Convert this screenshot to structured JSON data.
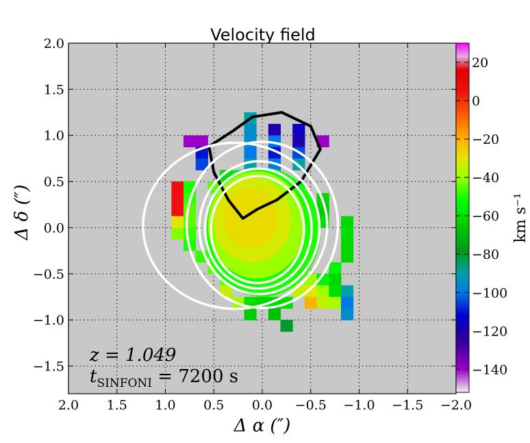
{
  "chart_data": {
    "type": "heatmap",
    "title": "Velocity field",
    "xlabel": "Δ α  (″)",
    "ylabel": "Δ δ  (″)",
    "xlim": [
      2.0,
      -2.0
    ],
    "ylim": [
      -1.8,
      2.0
    ],
    "grid": true,
    "x_ticks": [
      2.0,
      1.5,
      1.0,
      0.5,
      0.0,
      -0.5,
      -1.0,
      -1.5,
      -2.0
    ],
    "x_tick_labels": [
      "2.0",
      "1.5",
      "1.0",
      "0.5",
      "0.0",
      "−0.5",
      "−1.0",
      "−1.5",
      "−2.0"
    ],
    "y_ticks": [
      2.0,
      1.5,
      1.0,
      0.5,
      0.0,
      -0.5,
      -1.0,
      -1.5
    ],
    "y_tick_labels": [
      "2.0",
      "1.5",
      "1.0",
      "0.5",
      "0.0",
      "−0.5",
      "−1.0",
      "−1.5"
    ],
    "colorbar": {
      "label": "km s⁻¹",
      "vmin": -152,
      "vmax": 30,
      "ticks": [
        20,
        0,
        -20,
        -40,
        -60,
        -80,
        -100,
        -120,
        -140
      ],
      "tick_labels": [
        "20",
        "0",
        "−20",
        "−40",
        "−60",
        "−80",
        "−100",
        "−120",
        "−140"
      ],
      "colormap": [
        [
          -152,
          "#f2f2f2"
        ],
        [
          -140,
          "#9a00c8"
        ],
        [
          -125,
          "#30009a"
        ],
        [
          -112,
          "#0000d0"
        ],
        [
          -100,
          "#0078e8"
        ],
        [
          -90,
          "#00a0a8"
        ],
        [
          -78,
          "#009a18"
        ],
        [
          -66,
          "#00c800"
        ],
        [
          -52,
          "#00ff00"
        ],
        [
          -40,
          "#9cff00"
        ],
        [
          -30,
          "#e4e400"
        ],
        [
          -20,
          "#ffb000"
        ],
        [
          -8,
          "#ff6000"
        ],
        [
          5,
          "#ee1010"
        ],
        [
          16,
          "#e00000"
        ],
        [
          23,
          "#e0b0e0"
        ],
        [
          30,
          "#ff00ff"
        ]
      ]
    },
    "pixel_size_arcsec": 0.125,
    "pixels": [
      {
        "x": 0.125,
        "y": 1.1875,
        "v": -90
      },
      {
        "x": -0.125,
        "y": 1.0625,
        "v": -120
      },
      {
        "x": 0.125,
        "y": 1.0625,
        "v": -95
      },
      {
        "x": -0.375,
        "y": 1.0625,
        "v": -115
      },
      {
        "x": 0.75,
        "y": 0.9375,
        "v": -140
      },
      {
        "x": 0.625,
        "y": 0.9375,
        "v": -140
      },
      {
        "x": 0.125,
        "y": 0.9375,
        "v": -95
      },
      {
        "x": -0.125,
        "y": 0.9375,
        "v": -100
      },
      {
        "x": -0.375,
        "y": 0.9375,
        "v": -120
      },
      {
        "x": -0.625,
        "y": 0.9375,
        "v": -140
      },
      {
        "x": 0.625,
        "y": 0.8125,
        "v": -110
      },
      {
        "x": 0.125,
        "y": 0.8125,
        "v": -100
      },
      {
        "x": -0.125,
        "y": 0.8125,
        "v": -110
      },
      {
        "x": -0.375,
        "y": 0.8125,
        "v": -105
      },
      {
        "x": 0.625,
        "y": 0.6875,
        "v": -105
      },
      {
        "x": 0.125,
        "y": 0.6875,
        "v": -90
      },
      {
        "x": -0.125,
        "y": 0.6875,
        "v": -100
      },
      {
        "x": -0.375,
        "y": 0.6875,
        "v": -90
      },
      {
        "x": -0.125,
        "y": 0.5625,
        "v": -95
      },
      {
        "x": 0.375,
        "y": 0.5625,
        "v": -60
      },
      {
        "x": 0.25,
        "y": 0.5625,
        "v": -55
      },
      {
        "x": 0.875,
        "y": 0.4375,
        "v": 5
      },
      {
        "x": 0.75,
        "y": 0.4375,
        "v": -50
      },
      {
        "x": 0.5,
        "y": 0.4375,
        "v": -45
      },
      {
        "x": 0.375,
        "y": 0.4375,
        "v": -50
      },
      {
        "x": 0.25,
        "y": 0.4375,
        "v": -50
      },
      {
        "x": 0.125,
        "y": 0.4375,
        "v": -55
      },
      {
        "x": 0.0,
        "y": 0.4375,
        "v": -60
      },
      {
        "x": -0.125,
        "y": 0.4375,
        "v": -62
      },
      {
        "x": -0.375,
        "y": 0.4375,
        "v": -55
      },
      {
        "x": 0.875,
        "y": 0.3125,
        "v": 5
      },
      {
        "x": 0.75,
        "y": 0.3125,
        "v": -48
      },
      {
        "x": -0.375,
        "y": 0.3125,
        "v": -55
      },
      {
        "x": -0.625,
        "y": 0.3125,
        "v": -62
      },
      {
        "x": 0.875,
        "y": 0.1875,
        "v": 5
      },
      {
        "x": 0.75,
        "y": 0.1875,
        "v": -45
      },
      {
        "x": -0.5,
        "y": 0.1875,
        "v": -60
      },
      {
        "x": -0.625,
        "y": 0.1875,
        "v": -65
      },
      {
        "x": 0.875,
        "y": 0.0625,
        "v": -30
      },
      {
        "x": 0.75,
        "y": 0.0625,
        "v": -45
      },
      {
        "x": -0.625,
        "y": 0.0625,
        "v": -60
      },
      {
        "x": -0.875,
        "y": 0.0625,
        "v": -62
      },
      {
        "x": 0.875,
        "y": -0.0625,
        "v": -42
      },
      {
        "x": 0.75,
        "y": -0.0625,
        "v": -48
      },
      {
        "x": -0.875,
        "y": -0.0625,
        "v": -60
      },
      {
        "x": 0.75,
        "y": -0.1875,
        "v": -50
      },
      {
        "x": -0.875,
        "y": -0.1875,
        "v": -62
      },
      {
        "x": 0.625,
        "y": -0.3125,
        "v": -48
      },
      {
        "x": -0.875,
        "y": -0.3125,
        "v": -62
      },
      {
        "x": 0.5,
        "y": -0.4375,
        "v": -45
      },
      {
        "x": -0.75,
        "y": -0.4375,
        "v": -55
      },
      {
        "x": 0.375,
        "y": -0.5625,
        "v": -45
      },
      {
        "x": -0.5,
        "y": -0.5625,
        "v": -40
      },
      {
        "x": -0.625,
        "y": -0.5625,
        "v": -55
      },
      {
        "x": -0.75,
        "y": -0.5625,
        "v": -62
      },
      {
        "x": 0.375,
        "y": -0.6875,
        "v": -35
      },
      {
        "x": -0.375,
        "y": -0.6875,
        "v": -35
      },
      {
        "x": -0.5,
        "y": -0.6875,
        "v": -30
      },
      {
        "x": -0.625,
        "y": -0.6875,
        "v": -40
      },
      {
        "x": -0.75,
        "y": -0.6875,
        "v": -60
      },
      {
        "x": -0.875,
        "y": -0.6875,
        "v": -90
      },
      {
        "x": 0.25,
        "y": -0.8125,
        "v": -40
      },
      {
        "x": 0.125,
        "y": -0.8125,
        "v": -60
      },
      {
        "x": 0.0,
        "y": -0.8125,
        "v": -62
      },
      {
        "x": -0.125,
        "y": -0.8125,
        "v": -62
      },
      {
        "x": -0.25,
        "y": -0.8125,
        "v": -60
      },
      {
        "x": -0.5,
        "y": -0.8125,
        "v": -20
      },
      {
        "x": -0.625,
        "y": -0.8125,
        "v": -35
      },
      {
        "x": -0.75,
        "y": -0.8125,
        "v": -38
      },
      {
        "x": -0.875,
        "y": -0.8125,
        "v": -100
      },
      {
        "x": 0.125,
        "y": -0.9375,
        "v": -65
      },
      {
        "x": -0.125,
        "y": -0.9375,
        "v": -68
      },
      {
        "x": -0.875,
        "y": -0.9375,
        "v": -95
      },
      {
        "x": -0.25,
        "y": -1.0625,
        "v": -80
      }
    ],
    "core_rings": [
      {
        "cx": 0.0,
        "cy": -0.05,
        "rx": 0.6,
        "ry": 0.7,
        "v": -50
      },
      {
        "cx": 0.06,
        "cy": 0.03,
        "rx": 0.5,
        "ry": 0.58,
        "v": -40
      },
      {
        "cx": 0.1,
        "cy": 0.08,
        "rx": 0.4,
        "ry": 0.46,
        "v": -32
      },
      {
        "cx": 0.12,
        "cy": 0.1,
        "rx": 0.28,
        "ry": 0.32,
        "v": -28
      }
    ],
    "white_contours": [
      {
        "cx": 0.28,
        "cy": 0.02,
        "rx": 0.95,
        "ry": 0.9
      },
      {
        "cx": 0.0,
        "cy": 0.03,
        "rx": 0.78,
        "ry": 0.9
      },
      {
        "cx": 0.03,
        "cy": 0.0,
        "rx": 0.62,
        "ry": 0.72
      },
      {
        "cx": 0.04,
        "cy": -0.01,
        "rx": 0.55,
        "ry": 0.65
      },
      {
        "cx": 0.05,
        "cy": -0.02,
        "rx": 0.48,
        "ry": 0.58
      }
    ],
    "black_contour": [
      [
        0.55,
        0.88
      ],
      [
        0.3,
        1.05
      ],
      [
        0.1,
        1.2
      ],
      [
        -0.2,
        1.25
      ],
      [
        -0.5,
        1.1
      ],
      [
        -0.6,
        0.85
      ],
      [
        -0.4,
        0.5
      ],
      [
        -0.15,
        0.3
      ],
      [
        0.05,
        0.2
      ],
      [
        0.2,
        0.1
      ],
      [
        0.35,
        0.3
      ],
      [
        0.5,
        0.6
      ],
      [
        0.55,
        0.88
      ]
    ],
    "annotations": {
      "redshift": "z = 1.049",
      "exposure_label_t": "t",
      "exposure_label_sub": "SINFONI",
      "exposure_value": " = 7200 s"
    }
  }
}
